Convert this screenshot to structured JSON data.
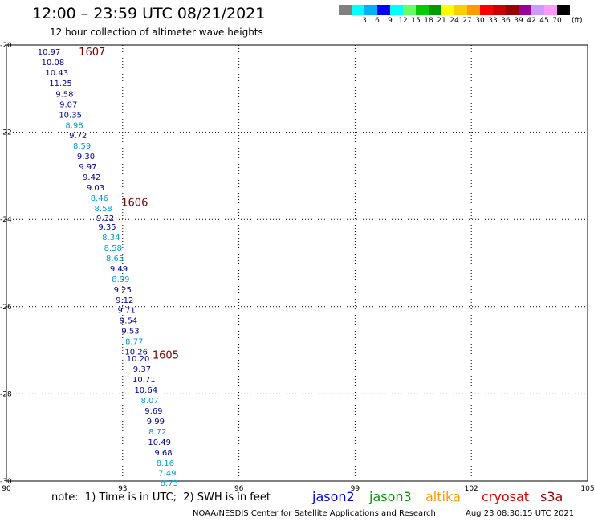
{
  "header": {
    "title": "12:00 – 23:59 UTC 08/21/2021",
    "subtitle": "12 hour collection of altimeter wave heights"
  },
  "legend": {
    "unit": "(ft)",
    "bins": [
      {
        "label": "",
        "color": "#808080"
      },
      {
        "label": "3",
        "color": "#00ffff"
      },
      {
        "label": "6",
        "color": "#00b0ff"
      },
      {
        "label": "9",
        "color": "#0000ff"
      },
      {
        "label": "12",
        "color": "#00ffff"
      },
      {
        "label": "15",
        "color": "#66ff66"
      },
      {
        "label": "18",
        "color": "#00cc00"
      },
      {
        "label": "21",
        "color": "#009900"
      },
      {
        "label": "24",
        "color": "#ffff00"
      },
      {
        "label": "27",
        "color": "#ffcc00"
      },
      {
        "label": "30",
        "color": "#ff9900"
      },
      {
        "label": "33",
        "color": "#ff0000"
      },
      {
        "label": "36",
        "color": "#cc0000"
      },
      {
        "label": "39",
        "color": "#990000"
      },
      {
        "label": "42",
        "color": "#990099"
      },
      {
        "label": "45",
        "color": "#cc99ff"
      },
      {
        "label": "70",
        "color": "#ff99ff"
      },
      {
        "label": "",
        "color": "#000000"
      }
    ]
  },
  "footer": {
    "note": "note:  1) Time is in UTC;  2) SWH is in feet",
    "satellites": [
      {
        "name": "jason2",
        "color": "#0000dd"
      },
      {
        "name": "jason3",
        "color": "#009900"
      },
      {
        "name": "altika",
        "color": "#ff9900"
      },
      {
        "name": "cryosat",
        "color": "#dd0000"
      },
      {
        "name": "s3a",
        "color": "#990000"
      }
    ],
    "credit": "NOAA/NESDIS Center for Satellite Applications and Research",
    "timestamp": "Aug 23 08:30:15 UTC 2021"
  },
  "chart_data": {
    "type": "scatter",
    "xlim": [
      90,
      105
    ],
    "ylim": [
      -30,
      -20
    ],
    "x_ticks": [
      "90",
      "93",
      "96",
      "99",
      "102",
      "105"
    ],
    "y_ticks": [
      "-20",
      "-22",
      "-24",
      "-26",
      "-28",
      "-30"
    ],
    "grid": true,
    "colors": {
      "dark_blue": "#000099",
      "light_blue": "#00a0c8",
      "pass_label": "#7a0000"
    },
    "pass_labels": [
      {
        "text": "1607",
        "lon": 92.2,
        "lat": -20.15
      },
      {
        "text": "1606",
        "lon": 93.3,
        "lat": -23.6
      },
      {
        "text": "1605",
        "lon": 94.1,
        "lat": -27.1
      }
    ],
    "points": [
      {
        "lon": 91.1,
        "lat": -20.15,
        "v": "10.97",
        "c": "dark"
      },
      {
        "lon": 91.2,
        "lat": -20.39,
        "v": "10.08",
        "c": "dark"
      },
      {
        "lon": 91.3,
        "lat": -20.63,
        "v": "10.43",
        "c": "dark"
      },
      {
        "lon": 91.4,
        "lat": -20.87,
        "v": "11.25",
        "c": "dark"
      },
      {
        "lon": 91.5,
        "lat": -21.11,
        "v": "9.58",
        "c": "dark"
      },
      {
        "lon": 91.6,
        "lat": -21.35,
        "v": "9.07",
        "c": "dark"
      },
      {
        "lon": 91.65,
        "lat": -21.59,
        "v": "10.35",
        "c": "dark"
      },
      {
        "lon": 91.75,
        "lat": -21.83,
        "v": "8.98",
        "c": "light"
      },
      {
        "lon": 91.85,
        "lat": -22.06,
        "v": "9.72",
        "c": "dark"
      },
      {
        "lon": 91.95,
        "lat": -22.3,
        "v": "8.59",
        "c": "light"
      },
      {
        "lon": 92.05,
        "lat": -22.54,
        "v": "9.30",
        "c": "dark"
      },
      {
        "lon": 92.1,
        "lat": -22.78,
        "v": "9.97",
        "c": "dark"
      },
      {
        "lon": 92.2,
        "lat": -23.02,
        "v": "9.42",
        "c": "dark"
      },
      {
        "lon": 92.3,
        "lat": -23.26,
        "v": "9.03",
        "c": "dark"
      },
      {
        "lon": 92.4,
        "lat": -23.5,
        "v": "8.46",
        "c": "light"
      },
      {
        "lon": 92.5,
        "lat": -23.74,
        "v": "8.58",
        "c": "light"
      },
      {
        "lon": 92.55,
        "lat": -23.96,
        "v": "9.32",
        "c": "dark"
      },
      {
        "lon": 92.6,
        "lat": -24.16,
        "v": "9.35",
        "c": "dark"
      },
      {
        "lon": 92.7,
        "lat": -24.4,
        "v": "8.34",
        "c": "light"
      },
      {
        "lon": 92.75,
        "lat": -24.64,
        "v": "8.58",
        "c": "light"
      },
      {
        "lon": 92.8,
        "lat": -24.88,
        "v": "8.65",
        "c": "light"
      },
      {
        "lon": 92.9,
        "lat": -25.12,
        "v": "9.49",
        "c": "dark"
      },
      {
        "lon": 92.95,
        "lat": -25.36,
        "v": "8.99",
        "c": "light"
      },
      {
        "lon": 93.0,
        "lat": -25.6,
        "v": "9.25",
        "c": "dark"
      },
      {
        "lon": 93.05,
        "lat": -25.84,
        "v": "9.12",
        "c": "dark"
      },
      {
        "lon": 93.1,
        "lat": -26.07,
        "v": "9.71",
        "c": "dark"
      },
      {
        "lon": 93.15,
        "lat": -26.31,
        "v": "9.54",
        "c": "dark"
      },
      {
        "lon": 93.2,
        "lat": -26.55,
        "v": "9.53",
        "c": "dark"
      },
      {
        "lon": 93.3,
        "lat": -26.79,
        "v": "8.77",
        "c": "light"
      },
      {
        "lon": 93.35,
        "lat": -27.03,
        "v": "10.26",
        "c": "dark"
      },
      {
        "lon": 93.4,
        "lat": -27.18,
        "v": "10.20",
        "c": "dark"
      },
      {
        "lon": 93.5,
        "lat": -27.42,
        "v": "9.37",
        "c": "dark"
      },
      {
        "lon": 93.55,
        "lat": -27.66,
        "v": "10.71",
        "c": "dark"
      },
      {
        "lon": 93.6,
        "lat": -27.9,
        "v": "10.64",
        "c": "dark"
      },
      {
        "lon": 93.7,
        "lat": -28.14,
        "v": "8.07",
        "c": "light"
      },
      {
        "lon": 93.8,
        "lat": -28.38,
        "v": "9.69",
        "c": "dark"
      },
      {
        "lon": 93.85,
        "lat": -28.62,
        "v": "9.99",
        "c": "dark"
      },
      {
        "lon": 93.9,
        "lat": -28.86,
        "v": "8.72",
        "c": "light"
      },
      {
        "lon": 93.95,
        "lat": -29.1,
        "v": "10.49",
        "c": "dark"
      },
      {
        "lon": 94.05,
        "lat": -29.34,
        "v": "9.68",
        "c": "dark"
      },
      {
        "lon": 94.1,
        "lat": -29.58,
        "v": "8.16",
        "c": "light"
      },
      {
        "lon": 94.15,
        "lat": -29.81,
        "v": "7.49",
        "c": "light"
      },
      {
        "lon": 94.2,
        "lat": -30.04,
        "v": "8.73",
        "c": "light"
      }
    ]
  }
}
